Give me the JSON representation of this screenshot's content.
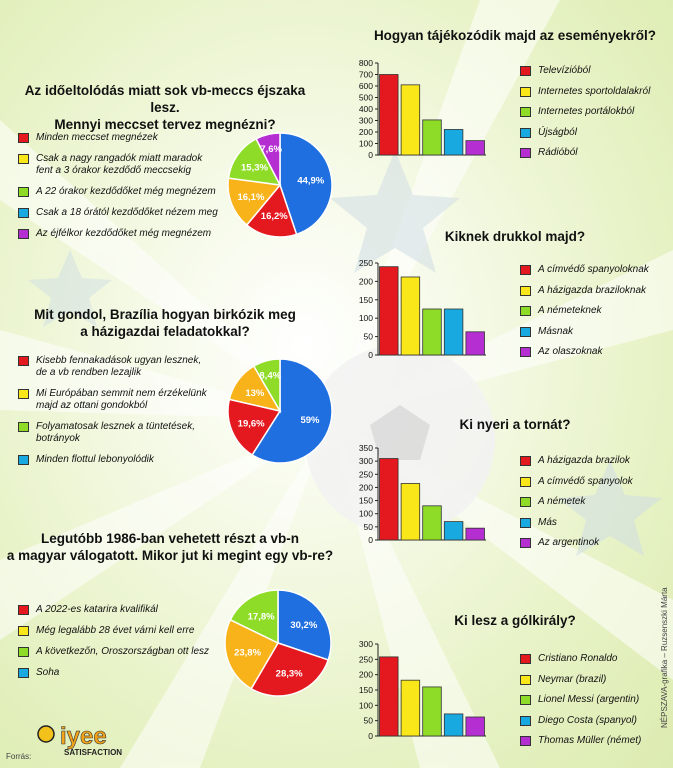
{
  "colors": {
    "red": "#e4191f",
    "yellow": "#f9e71a",
    "green": "#8fdc28",
    "cyan": "#19a9e1",
    "purple": "#b52ed1",
    "blue": "#1f6fe0",
    "orange": "#f8b31b"
  },
  "source_label": "Forrás:",
  "credit": "NÉPSZAVA-grafika – Ruzsenszki Márta",
  "logo": {
    "word1": "iyee",
    "word2": "SATISFACTION"
  },
  "chart_data": [
    {
      "type": "pie",
      "title_lines": [
        "Az időeltolódás miatt sok vb-meccs éjszaka lesz.",
        "Mennyi meccset tervez megnézni?"
      ],
      "legend": [
        {
          "lines": [
            "Minden meccset megnézek"
          ],
          "color": "red"
        },
        {
          "lines": [
            "Csak a nagy rangadók miatt maradok",
            "fent a 3 órakor kezdődő meccsekig"
          ],
          "color": "yellow"
        },
        {
          "lines": [
            "A 22 órakor kezdődőket még megnézem"
          ],
          "color": "green"
        },
        {
          "lines": [
            "Csak a 18 órától kezdődőket nézem meg"
          ],
          "color": "cyan"
        },
        {
          "lines": [
            "Az éjfélkor kezdődőket még megnézem"
          ],
          "color": "purple"
        }
      ],
      "slices": [
        {
          "label": "44,9%",
          "value": 44.9,
          "color": "blue"
        },
        {
          "label": "16,2%",
          "value": 16.2,
          "color": "red"
        },
        {
          "label": "16,1%",
          "value": 16.1,
          "color": "orange"
        },
        {
          "label": "15,3%",
          "value": 15.3,
          "color": "green"
        },
        {
          "label": "7,6%",
          "value": 7.6,
          "color": "purple"
        }
      ]
    },
    {
      "type": "pie",
      "title_lines": [
        "Mit gondol, Brazília hogyan birkózik meg",
        "a házigazdai feladatokkal?"
      ],
      "legend": [
        {
          "lines": [
            "Kisebb fennakadások ugyan lesznek,",
            "de a vb rendben lezajlik"
          ],
          "color": "red"
        },
        {
          "lines": [
            "Mi Európában semmit nem érzékelünk",
            "majd az ottani gondokból"
          ],
          "color": "yellow"
        },
        {
          "lines": [
            "Folyamatosak lesznek a tüntetések,",
            "botrányok"
          ],
          "color": "green"
        },
        {
          "lines": [
            "Minden flottul lebonyolódik"
          ],
          "color": "cyan"
        }
      ],
      "slices": [
        {
          "label": "59%",
          "value": 59,
          "color": "blue"
        },
        {
          "label": "19,6%",
          "value": 19.6,
          "color": "red"
        },
        {
          "label": "13%",
          "value": 13,
          "color": "orange"
        },
        {
          "label": "8,4%",
          "value": 8.4,
          "color": "green"
        }
      ]
    },
    {
      "type": "pie",
      "title_lines": [
        "Legutóbb 1986-ban vehetett részt a vb-n",
        "a magyar válogatott. Mikor jut ki megint egy vb-re?"
      ],
      "legend": [
        {
          "lines": [
            "A 2022-es katarira kvalifikál"
          ],
          "color": "red"
        },
        {
          "lines": [
            "Még legalább 28 évet várni kell erre"
          ],
          "color": "yellow"
        },
        {
          "lines": [
            "A következőn, Oroszországban ott lesz"
          ],
          "color": "green"
        },
        {
          "lines": [
            "Soha"
          ],
          "color": "cyan"
        }
      ],
      "slices": [
        {
          "label": "30,2%",
          "value": 30.2,
          "color": "blue"
        },
        {
          "label": "28,3%",
          "value": 28.3,
          "color": "red"
        },
        {
          "label": "23,8%",
          "value": 23.8,
          "color": "orange"
        },
        {
          "label": "17,8%",
          "value": 17.8,
          "color": "green"
        }
      ]
    },
    {
      "type": "bar",
      "title_lines": [
        "Hogyan tájékozódik majd az eseményekről?"
      ],
      "ylim": [
        0,
        800
      ],
      "yticks": [
        0,
        100,
        200,
        300,
        400,
        500,
        600,
        700,
        800
      ],
      "categories": [
        "Televízióból",
        "Internetes sportoldalakról",
        "Internetes portálokból",
        "Újságból",
        "Rádióból"
      ],
      "values": [
        700,
        610,
        305,
        222,
        125
      ],
      "colors": [
        "red",
        "yellow",
        "green",
        "cyan",
        "purple"
      ]
    },
    {
      "type": "bar",
      "title_lines": [
        "Kiknek drukkol majd?"
      ],
      "ylim": [
        0,
        250
      ],
      "yticks": [
        0,
        50,
        100,
        150,
        200,
        250
      ],
      "categories": [
        "A címvédő spanyoloknak",
        "A házigazda braziloknak",
        "A németeknek",
        "Másnak",
        "Az olaszoknak"
      ],
      "values": [
        240,
        212,
        125,
        125,
        63
      ],
      "colors": [
        "red",
        "yellow",
        "green",
        "cyan",
        "purple"
      ]
    },
    {
      "type": "bar",
      "title_lines": [
        "Ki nyeri a tornát?"
      ],
      "ylim": [
        0,
        350
      ],
      "yticks": [
        0,
        50,
        100,
        150,
        200,
        250,
        300,
        350
      ],
      "categories": [
        "A házigazda brazilok",
        "A címvédő spanyolok",
        "A németek",
        "Más",
        "Az argentinok"
      ],
      "values": [
        310,
        215,
        130,
        70,
        45
      ],
      "colors": [
        "red",
        "yellow",
        "green",
        "cyan",
        "purple"
      ]
    },
    {
      "type": "bar",
      "title_lines": [
        "Ki lesz a gólkirály?"
      ],
      "ylim": [
        0,
        300
      ],
      "yticks": [
        0,
        50,
        100,
        150,
        200,
        250,
        300
      ],
      "categories": [
        "Cristiano Ronaldo",
        "Neymar (brazil)",
        "Lionel Messi (argentin)",
        "Diego Costa (spanyol)",
        "Thomas Müller (német)"
      ],
      "values": [
        258,
        182,
        160,
        72,
        62
      ],
      "colors": [
        "red",
        "yellow",
        "green",
        "cyan",
        "purple"
      ]
    }
  ]
}
